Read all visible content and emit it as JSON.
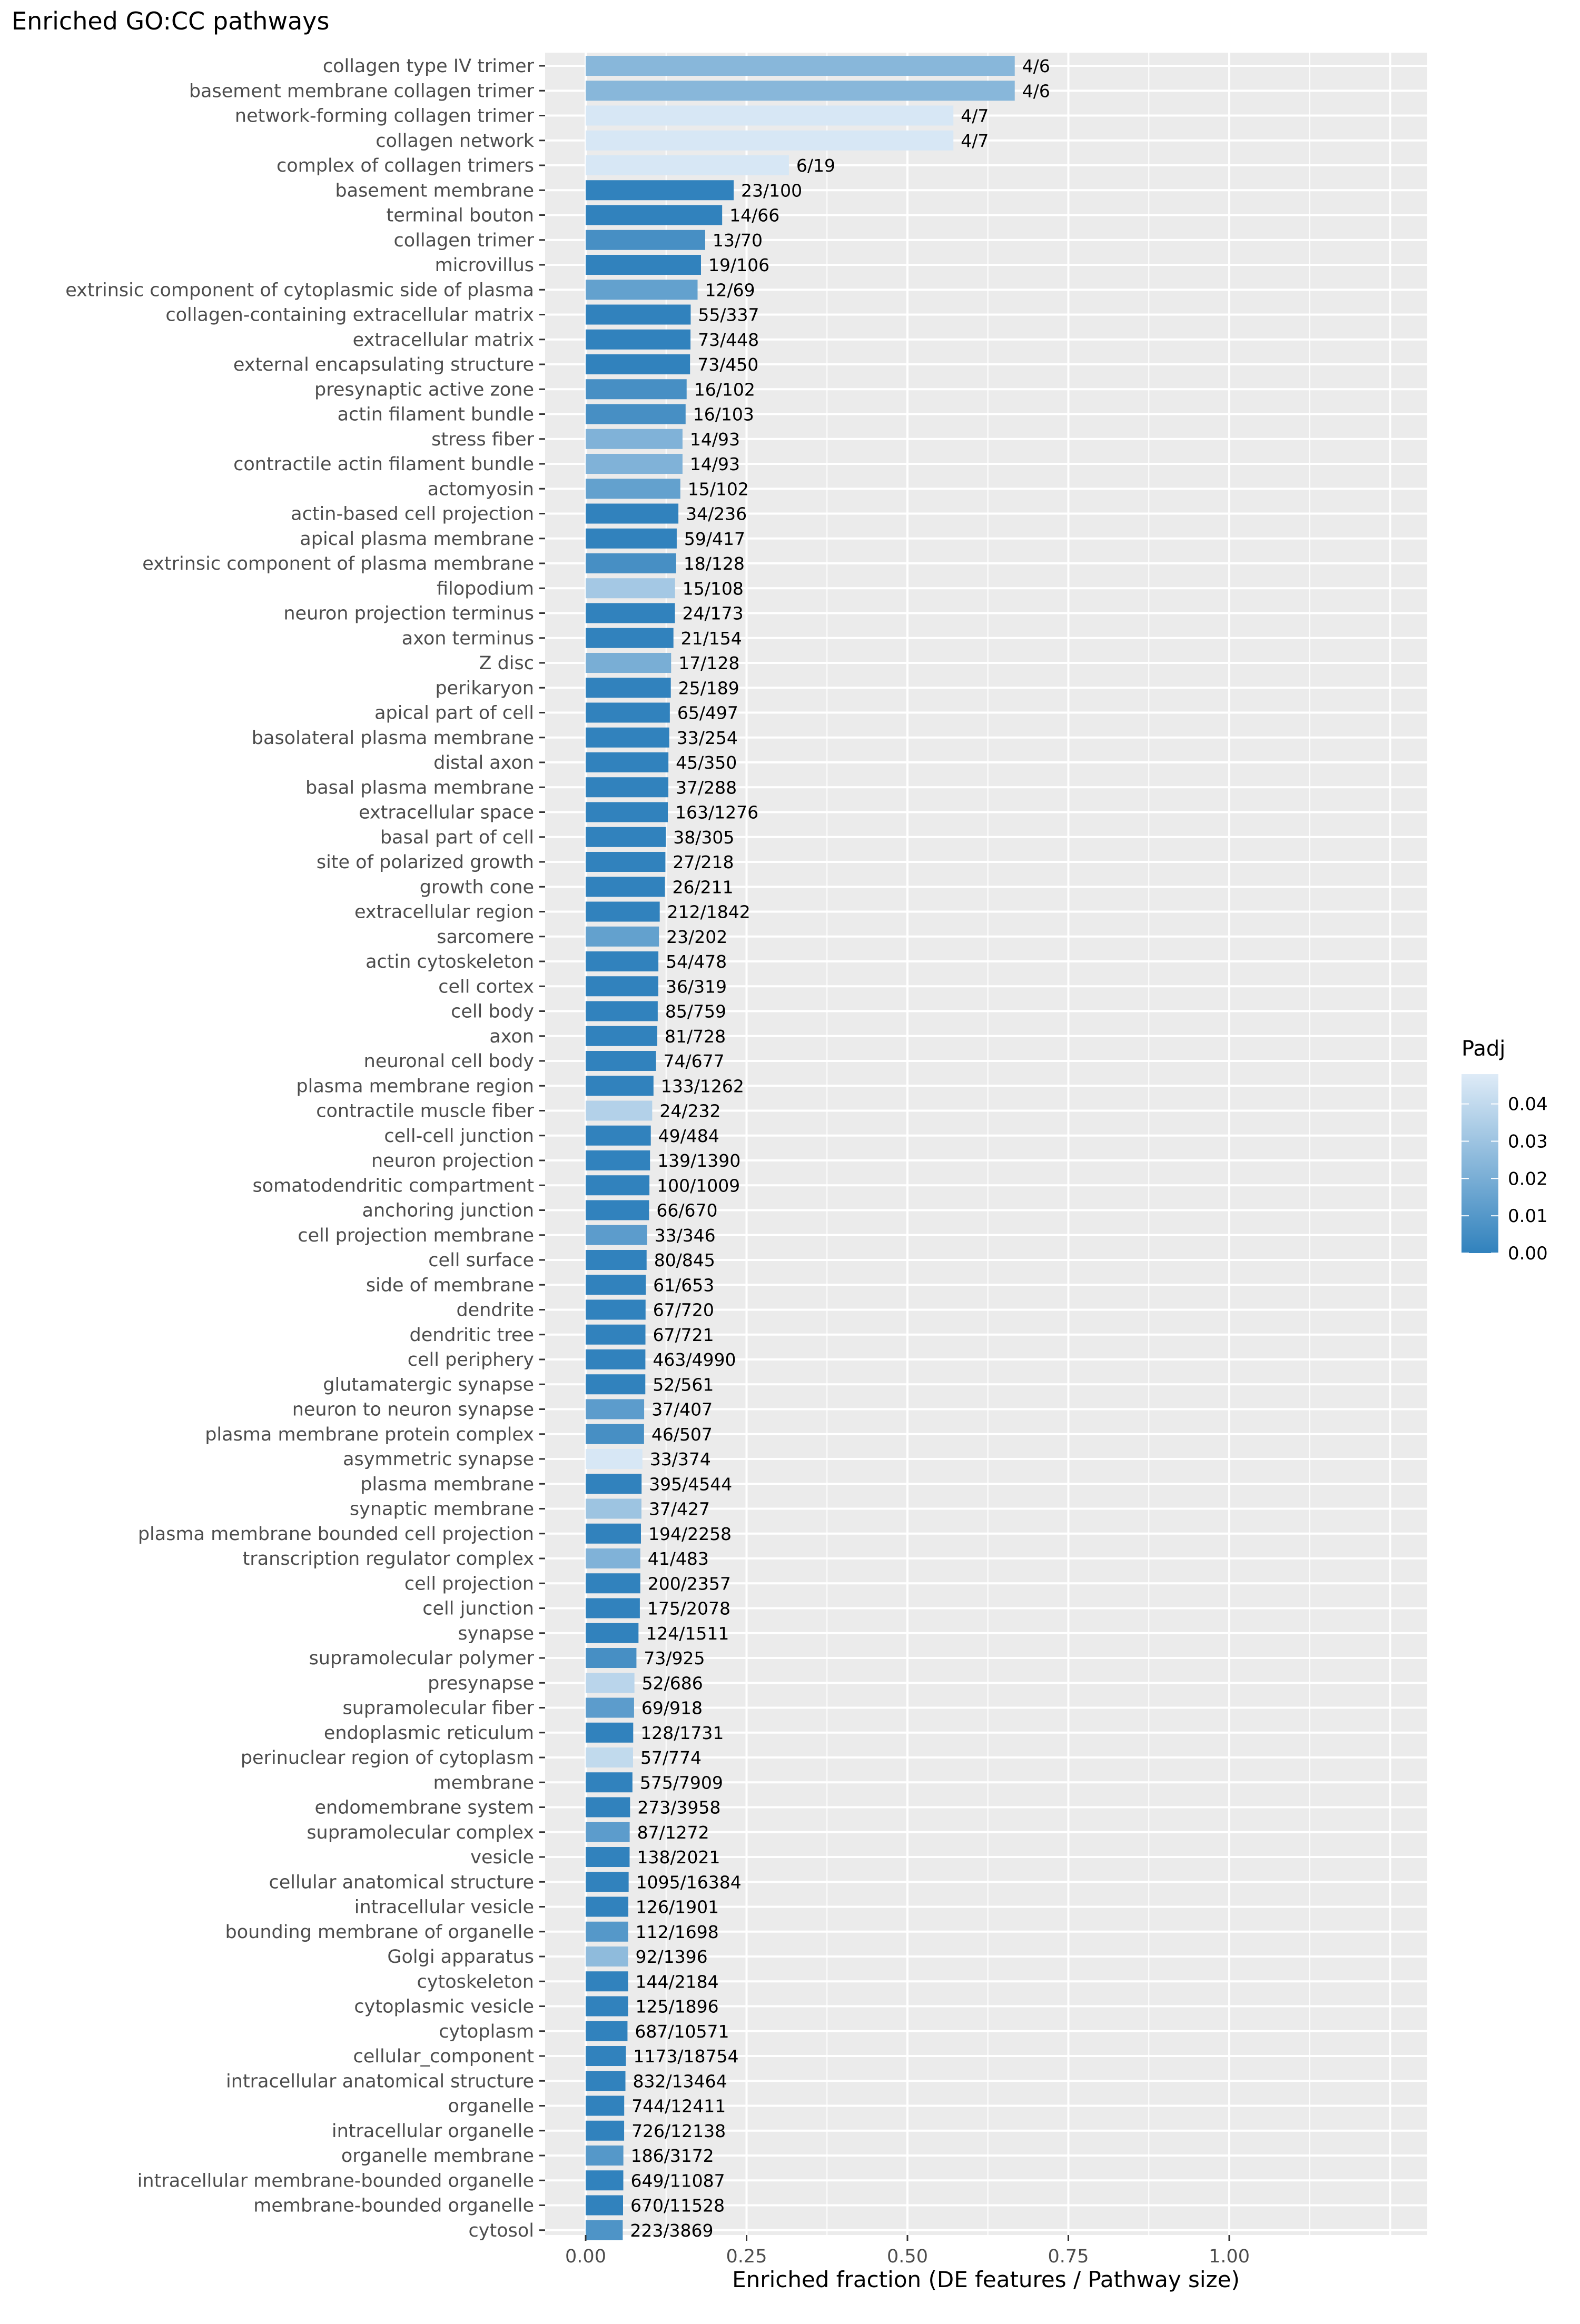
{
  "chart_data": {
    "type": "bar",
    "orientation": "horizontal",
    "title": "Enriched GO:CC pathways",
    "xlabel": "Enriched fraction (DE features / Pathway size)",
    "ylabel": "",
    "xlim": [
      0,
      1.3
    ],
    "xticks": [
      "0.00",
      "0.25",
      "0.50",
      "0.75",
      "1.00"
    ],
    "grid": true,
    "legend": {
      "title": "Padj",
      "position": "right",
      "type": "colorbar",
      "ticks": [
        "0.04",
        "0.03",
        "0.02",
        "0.01",
        "0.00"
      ],
      "range": [
        0,
        0.048
      ],
      "color_low": "#3182bd",
      "color_high": "#deebf7"
    },
    "colors": {
      "panel": "#ebebeb",
      "grid": "#ffffff",
      "axis_text": "#4d4d4d"
    },
    "categories": [
      "collagen type IV trimer",
      "basement membrane collagen trimer",
      "network-forming collagen trimer",
      "collagen network",
      "complex of collagen trimers",
      "basement membrane",
      "terminal bouton",
      "collagen trimer",
      "microvillus",
      "extrinsic component of cytoplasmic side of plasma",
      "collagen-containing extracellular matrix",
      "extracellular matrix",
      "external encapsulating structure",
      "presynaptic active zone",
      "actin filament bundle",
      "stress fiber",
      "contractile actin filament bundle",
      "actomyosin",
      "actin-based cell projection",
      "apical plasma membrane",
      "extrinsic component of plasma membrane",
      "filopodium",
      "neuron projection terminus",
      "axon terminus",
      "Z disc",
      "perikaryon",
      "apical part of cell",
      "basolateral plasma membrane",
      "distal axon",
      "basal plasma membrane",
      "extracellular space",
      "basal part of cell",
      "site of polarized growth",
      "growth cone",
      "extracellular region",
      "sarcomere",
      "actin cytoskeleton",
      "cell cortex",
      "cell body",
      "axon",
      "neuronal cell body",
      "plasma membrane region",
      "contractile muscle fiber",
      "cell-cell junction",
      "neuron projection",
      "somatodendritic compartment",
      "anchoring junction",
      "cell projection membrane",
      "cell surface",
      "side of membrane",
      "dendrite",
      "dendritic tree",
      "cell periphery",
      "glutamatergic synapse",
      "neuron to neuron synapse",
      "plasma membrane protein complex",
      "asymmetric synapse",
      "plasma membrane",
      "synaptic membrane",
      "plasma membrane bounded cell projection",
      "transcription regulator complex",
      "cell projection",
      "cell junction",
      "synapse",
      "supramolecular polymer",
      "presynapse",
      "supramolecular fiber",
      "endoplasmic reticulum",
      "perinuclear region of cytoplasm",
      "membrane",
      "endomembrane system",
      "supramolecular complex",
      "vesicle",
      "cellular anatomical structure",
      "intracellular vesicle",
      "bounding membrane of organelle",
      "Golgi apparatus",
      "cytoskeleton",
      "cytoplasmic vesicle",
      "cytoplasm",
      "cellular_component",
      "intracellular anatomical structure",
      "organelle",
      "intracellular organelle",
      "organelle membrane",
      "intracellular membrane-bounded organelle",
      "membrane-bounded organelle",
      "cytosol"
    ],
    "labels": [
      "4/6",
      "4/6",
      "4/7",
      "4/7",
      "6/19",
      "23/100",
      "14/66",
      "13/70",
      "19/106",
      "12/69",
      "55/337",
      "73/448",
      "73/450",
      "16/102",
      "16/103",
      "14/93",
      "14/93",
      "15/102",
      "34/236",
      "59/417",
      "18/128",
      "15/108",
      "24/173",
      "21/154",
      "17/128",
      "25/189",
      "65/497",
      "33/254",
      "45/350",
      "37/288",
      "163/1276",
      "38/305",
      "27/218",
      "26/211",
      "212/1842",
      "23/202",
      "54/478",
      "36/319",
      "85/759",
      "81/728",
      "74/677",
      "133/1262",
      "24/232",
      "49/484",
      "139/1390",
      "100/1009",
      "66/670",
      "33/346",
      "80/845",
      "61/653",
      "67/720",
      "67/721",
      "463/4990",
      "52/561",
      "37/407",
      "46/507",
      "33/374",
      "395/4544",
      "37/427",
      "194/2258",
      "41/483",
      "200/2357",
      "175/2078",
      "124/1511",
      "73/925",
      "52/686",
      "69/918",
      "128/1731",
      "57/774",
      "575/7909",
      "273/3958",
      "87/1272",
      "138/2021",
      "1095/16384",
      "126/1901",
      "112/1698",
      "92/1396",
      "144/2184",
      "125/1896",
      "687/10571",
      "1173/18754",
      "832/13464",
      "744/12411",
      "726/12138",
      "186/3172",
      "649/11087",
      "670/11528",
      "223/3869"
    ],
    "values": [
      0.6667,
      0.6667,
      0.5714,
      0.5714,
      0.3158,
      0.23,
      0.2121,
      0.1857,
      0.1792,
      0.1739,
      0.1632,
      0.1629,
      0.1622,
      0.1569,
      0.1553,
      0.1505,
      0.1505,
      0.1471,
      0.1441,
      0.1415,
      0.1406,
      0.1389,
      0.1387,
      0.1364,
      0.1328,
      0.1323,
      0.1308,
      0.1299,
      0.1286,
      0.1285,
      0.1277,
      0.1246,
      0.1239,
      0.1232,
      0.1151,
      0.1139,
      0.113,
      0.1129,
      0.112,
      0.1113,
      0.1093,
      0.1054,
      0.1034,
      0.1012,
      0.1,
      0.0991,
      0.0985,
      0.0954,
      0.0947,
      0.0934,
      0.0931,
      0.0929,
      0.0928,
      0.0927,
      0.0909,
      0.0907,
      0.0882,
      0.0869,
      0.0867,
      0.0859,
      0.0849,
      0.0849,
      0.0842,
      0.0821,
      0.0789,
      0.0758,
      0.0752,
      0.0739,
      0.0736,
      0.0727,
      0.069,
      0.0684,
      0.0683,
      0.0668,
      0.0663,
      0.066,
      0.0659,
      0.0659,
      0.0659,
      0.065,
      0.0625,
      0.0618,
      0.0599,
      0.0598,
      0.0586,
      0.0585,
      0.0581,
      0.0576
    ],
    "padj": [
      0.024,
      0.024,
      0.046,
      0.046,
      0.046,
      0.0,
      0.0,
      0.006,
      0.0,
      0.014,
      0.0,
      0.0,
      0.0,
      0.006,
      0.006,
      0.022,
      0.022,
      0.014,
      0.0,
      0.0,
      0.006,
      0.032,
      0.0,
      0.0,
      0.02,
      0.0,
      0.0,
      0.0,
      0.0,
      0.0,
      0.0,
      0.0,
      0.0,
      0.0,
      0.0,
      0.014,
      0.0,
      0.0,
      0.0,
      0.0,
      0.0,
      0.0,
      0.036,
      0.0,
      0.0,
      0.0,
      0.0,
      0.012,
      0.0,
      0.0,
      0.0,
      0.0,
      0.0,
      0.0,
      0.012,
      0.006,
      0.046,
      0.0,
      0.03,
      0.0,
      0.022,
      0.0,
      0.0,
      0.0,
      0.006,
      0.038,
      0.012,
      0.0,
      0.04,
      0.0,
      0.0,
      0.012,
      0.0,
      0.0,
      0.0,
      0.01,
      0.026,
      0.0,
      0.0,
      0.0,
      0.0,
      0.0,
      0.0,
      0.0,
      0.01,
      0.0,
      0.0,
      0.008
    ]
  }
}
